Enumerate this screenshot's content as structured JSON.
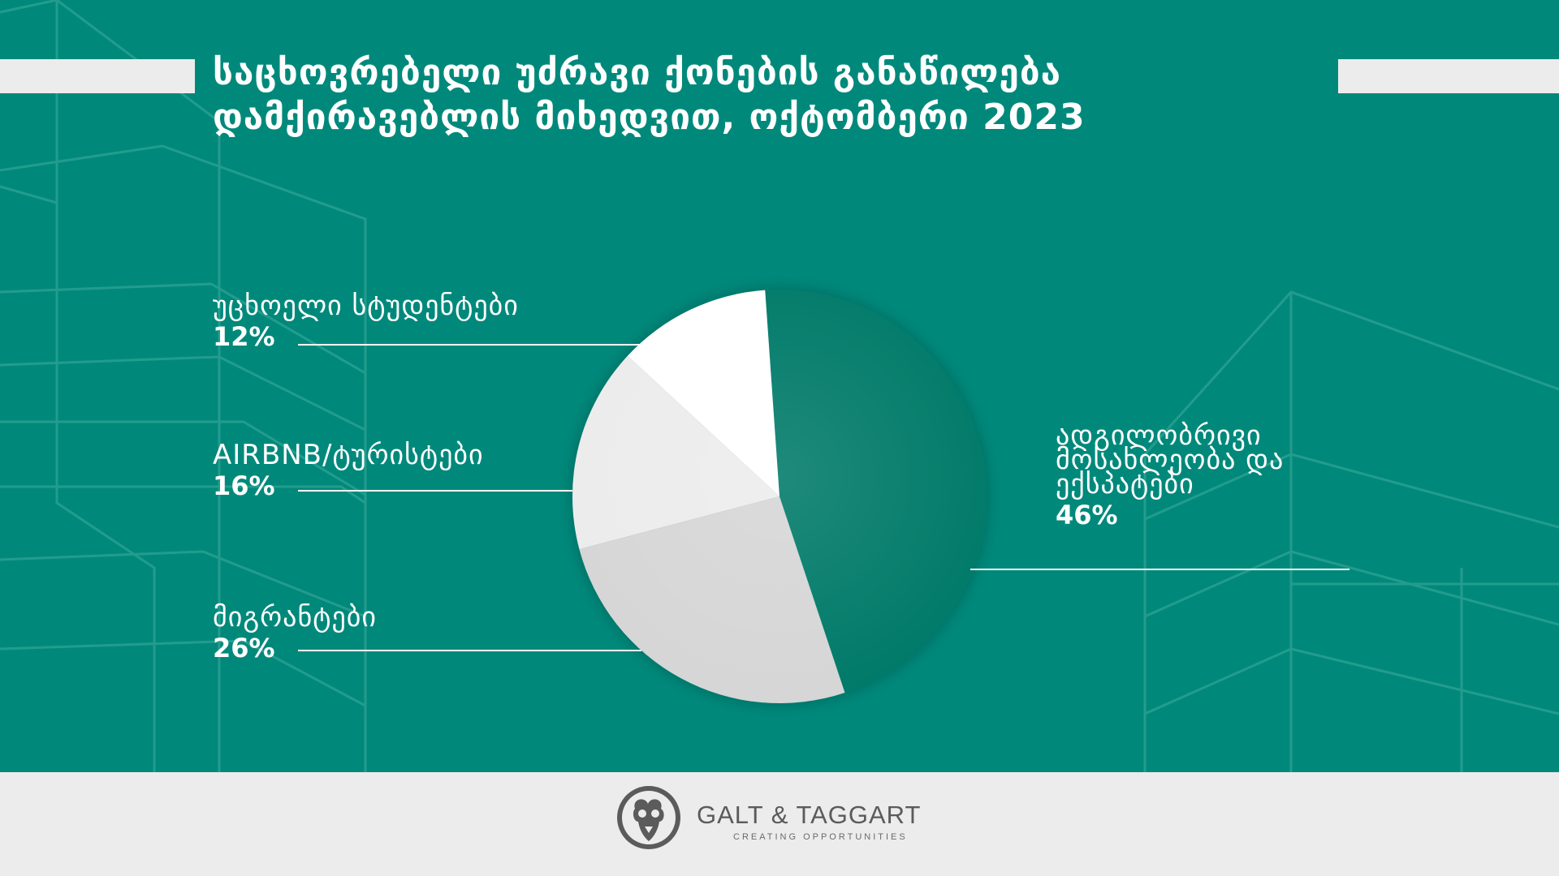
{
  "title": {
    "line1": "საცხოვრებელი უძრავი ქონების განაწილება",
    "line2": "დამქირავებლის მიხედვით, ოქტომბერი 2023"
  },
  "colors": {
    "background": "#00897b",
    "accent_dark": "#057a69",
    "band": "#ececec"
  },
  "chart_data": {
    "type": "pie",
    "title": "საცხოვრებელი უძრავი ქონების განაწილება დამქირავებლის მიხედვით, ოქტომბერი 2023",
    "slices": [
      {
        "label": "ადგილობრივი მოსახლეობა და ექსპატები",
        "label_lines": [
          "ადგილობრივი",
          "მოსახლეობა და",
          "ექსპატები"
        ],
        "value": 46,
        "value_label": "46%",
        "color": "#057a69"
      },
      {
        "label": "მიგრანტები",
        "label_lines": [
          "მიგრანტები"
        ],
        "value": 26,
        "value_label": "26%",
        "color": "#d6d6d6"
      },
      {
        "label": "AIRBNB/ტურისტები",
        "label_lines": [
          "AIRBNB/ტურისტები"
        ],
        "value": 16,
        "value_label": "16%",
        "color": "#ececec"
      },
      {
        "label": "უცხოელი სტუდენტები",
        "label_lines": [
          "უცხოელი სტუდენტები"
        ],
        "value": 12,
        "value_label": "12%",
        "color": "#ffffff"
      }
    ]
  },
  "footer": {
    "logo_icon": "ram-head-icon",
    "brand": "GALT & TAGGART",
    "tagline": "CREATING OPPORTUNITIES"
  }
}
